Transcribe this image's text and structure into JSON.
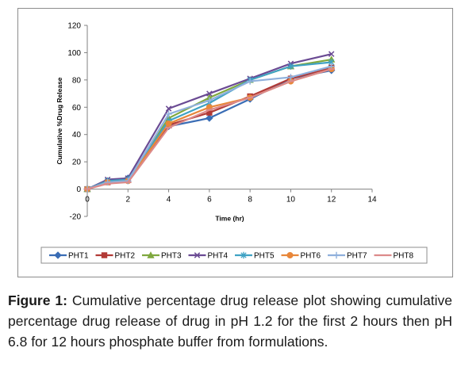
{
  "chart_data": {
    "type": "line",
    "xlabel": "Time (hr)",
    "ylabel": "Cumulative %Drug Release",
    "xlim": [
      0,
      14
    ],
    "ylim": [
      -20,
      120
    ],
    "xticks": [
      0,
      2,
      4,
      6,
      8,
      10,
      12,
      14
    ],
    "yticks": [
      -20,
      0,
      20,
      40,
      60,
      80,
      100,
      120
    ],
    "grid": false,
    "legend_position": "bottom",
    "x": [
      0,
      1,
      2,
      4,
      6,
      8,
      10,
      12
    ],
    "series": [
      {
        "name": "PHT1",
        "color": "#3a6db5",
        "marker": "diamond",
        "values": [
          0,
          6,
          8,
          46,
          52,
          66,
          81,
          87
        ]
      },
      {
        "name": "PHT2",
        "color": "#b23a36",
        "marker": "square",
        "values": [
          0,
          5,
          7,
          47,
          56,
          68,
          81,
          89
        ]
      },
      {
        "name": "PHT3",
        "color": "#7fa83e",
        "marker": "triangle",
        "values": [
          0,
          6,
          7,
          52,
          67,
          80,
          90,
          95
        ]
      },
      {
        "name": "PHT4",
        "color": "#6a4a93",
        "marker": "x",
        "values": [
          0,
          7,
          8,
          59,
          70,
          81,
          92,
          99
        ]
      },
      {
        "name": "PHT5",
        "color": "#3fa2c4",
        "marker": "asterisk",
        "values": [
          0,
          6,
          7,
          50,
          63,
          80,
          90,
          93
        ]
      },
      {
        "name": "PHT6",
        "color": "#e8873a",
        "marker": "circle",
        "values": [
          0,
          5,
          6,
          48,
          60,
          67,
          79,
          88
        ]
      },
      {
        "name": "PHT7",
        "color": "#8fb0dc",
        "marker": "plus",
        "values": [
          0,
          5,
          6,
          55,
          65,
          79,
          82,
          90
        ]
      },
      {
        "name": "PHT8",
        "color": "#dc8a8a",
        "marker": "dash",
        "values": [
          0,
          4,
          5,
          45,
          58,
          67,
          79,
          88
        ]
      }
    ]
  },
  "caption": {
    "label": "Figure 1:",
    "text": " Cumulative percentage drug release plot showing cumulative percentage drug release of drug in pH 1.2 for the first 2 hours then pH 6.8 for 12 hours phosphate buffer from formulations."
  }
}
